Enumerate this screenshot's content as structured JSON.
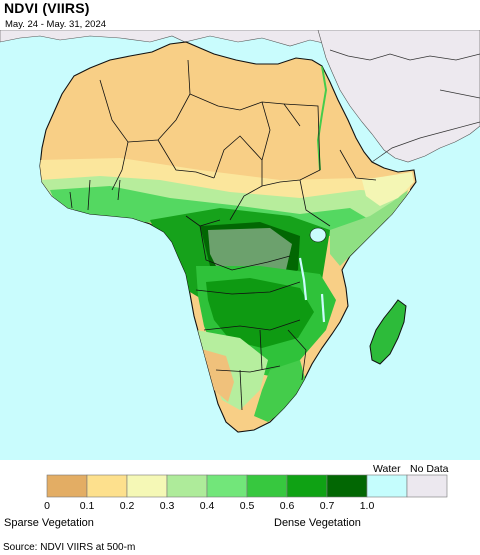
{
  "header": {
    "title": "NDVI (VIIRS)",
    "date_range": "May. 24 - May. 31, 2024"
  },
  "legend": {
    "water_label": "Water",
    "nodata_label": "No Data",
    "bins": [
      {
        "color": "#e3ad64"
      },
      {
        "color": "#fde08d"
      },
      {
        "color": "#f5f8b6"
      },
      {
        "color": "#aeeb9a"
      },
      {
        "color": "#72e67a"
      },
      {
        "color": "#37c83f"
      },
      {
        "color": "#0fa214"
      },
      {
        "color": "#026703"
      },
      {
        "color": "#c5fdfd"
      },
      {
        "color": "#ece8ef"
      }
    ],
    "ticks": [
      "0",
      "0.1",
      "0.2",
      "0.3",
      "0.4",
      "0.5",
      "0.6",
      "0.7",
      "1.0"
    ],
    "low_caption": "Sparse Vegetation",
    "high_caption": "Dense Vegetation"
  },
  "footer": {
    "source": "Source: NDVI VIIRS at 500-m"
  },
  "colors": {
    "ocean": "#c9fcfd",
    "desert": "#f8cf86",
    "outside": "#ede9ef",
    "border": "#111111"
  }
}
